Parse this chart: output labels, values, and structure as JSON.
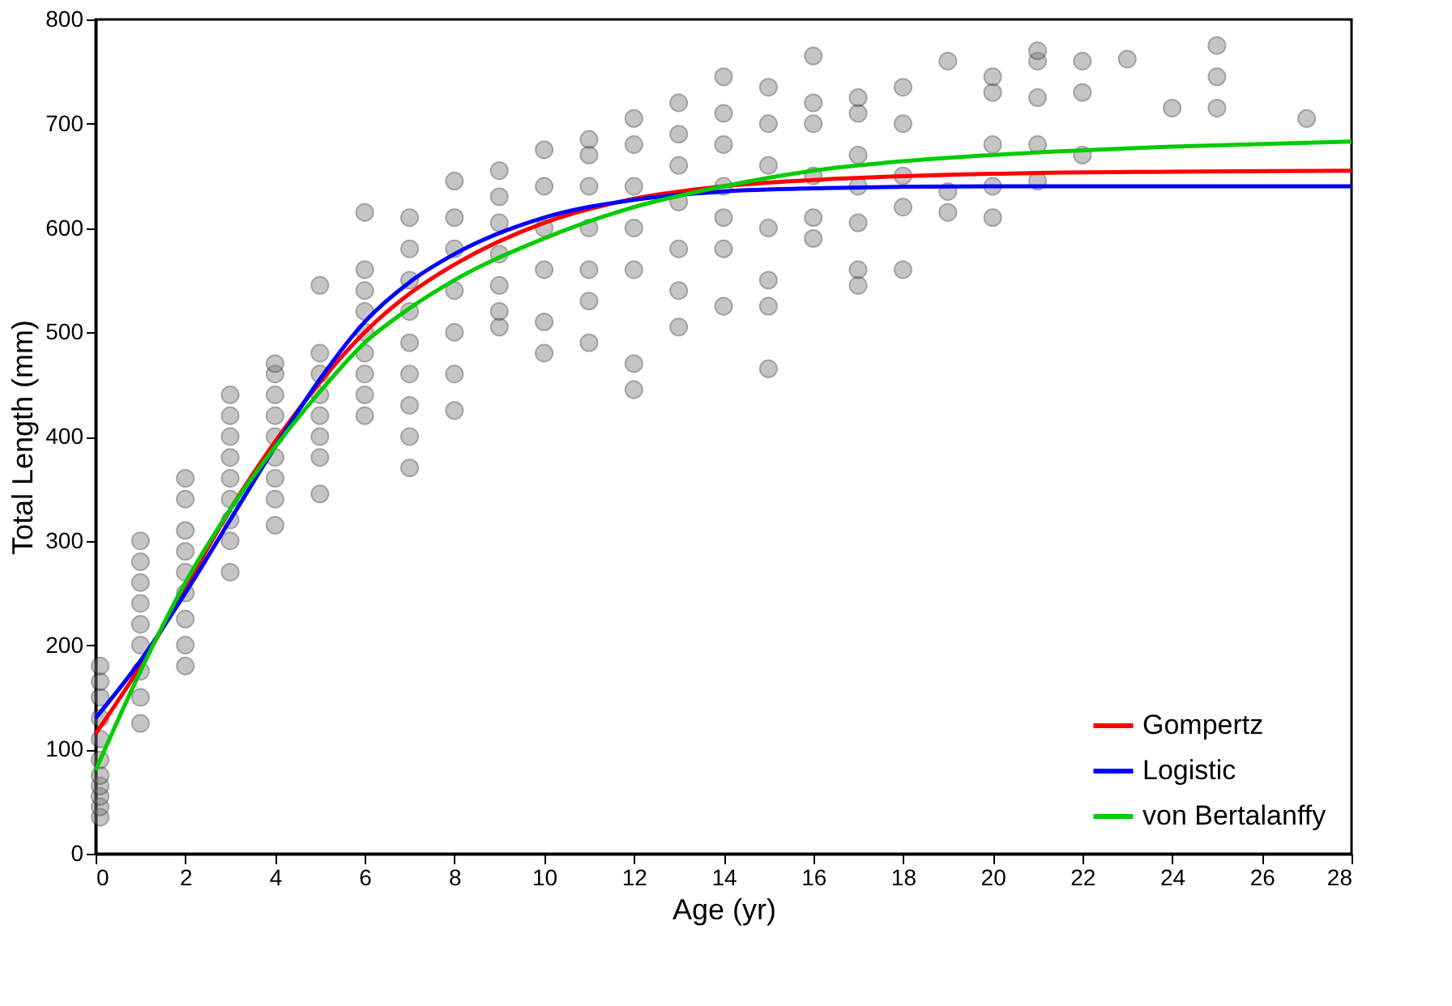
{
  "chart_data": {
    "type": "scatter",
    "xlabel": "Age (yr)",
    "ylabel": "Total Length (mm)",
    "xlim": [
      0,
      28
    ],
    "xticks": [
      0,
      2,
      4,
      6,
      8,
      10,
      12,
      14,
      16,
      18,
      20,
      22,
      24,
      26,
      28
    ],
    "ylim": [
      0,
      800
    ],
    "yticks": [
      0,
      100,
      200,
      300,
      400,
      500,
      600,
      700,
      800
    ],
    "grid": false,
    "legend": "bottom right",
    "series": [
      {
        "marker": "circle",
        "color": "#808080",
        "x": [
          0.1,
          0.1,
          0.1,
          0.1,
          0.1,
          0.1,
          0.1,
          0.1,
          0.1,
          0.1,
          0.1,
          1,
          1,
          1,
          1,
          1,
          1,
          1,
          1,
          1,
          2,
          2,
          2,
          2,
          2,
          2,
          2,
          2,
          2,
          3,
          3,
          3,
          3,
          3,
          3,
          3,
          3,
          3,
          4,
          4,
          4,
          4,
          4,
          4,
          4,
          4,
          4,
          5,
          5,
          5,
          5,
          5,
          5,
          5,
          5,
          6,
          6,
          6,
          6,
          6,
          6,
          6,
          6,
          6,
          7,
          7,
          7,
          7,
          7,
          7,
          7,
          7,
          7,
          8,
          8,
          8,
          8,
          8,
          8,
          8,
          9,
          9,
          9,
          9,
          9,
          9,
          9,
          10,
          10,
          10,
          10,
          10,
          10,
          11,
          11,
          11,
          11,
          11,
          11,
          11,
          12,
          12,
          12,
          12,
          12,
          12,
          12,
          13,
          13,
          13,
          13,
          13,
          13,
          13,
          14,
          14,
          14,
          14,
          14,
          14,
          14,
          15,
          15,
          15,
          15,
          15,
          15,
          15,
          16,
          16,
          16,
          16,
          16,
          16,
          17,
          17,
          17,
          17,
          17,
          17,
          17,
          18,
          18,
          18,
          18,
          18,
          19,
          19,
          19,
          20,
          20,
          20,
          20,
          20,
          21,
          21,
          21,
          21,
          21,
          22,
          22,
          22,
          23,
          24,
          25,
          25,
          25,
          27
        ],
        "values": [
          35,
          45,
          55,
          65,
          75,
          90,
          110,
          130,
          150,
          165,
          180,
          125,
          150,
          175,
          200,
          220,
          240,
          260,
          280,
          300,
          180,
          200,
          225,
          250,
          270,
          290,
          310,
          340,
          360,
          270,
          300,
          320,
          340,
          360,
          380,
          400,
          420,
          440,
          315,
          340,
          360,
          380,
          400,
          420,
          440,
          460,
          470,
          345,
          380,
          400,
          420,
          440,
          460,
          480,
          545,
          420,
          440,
          460,
          480,
          500,
          520,
          540,
          560,
          615,
          370,
          400,
          430,
          460,
          490,
          520,
          550,
          580,
          610,
          425,
          460,
          500,
          540,
          580,
          610,
          645,
          505,
          520,
          545,
          575,
          605,
          630,
          655,
          480,
          510,
          560,
          600,
          640,
          675,
          490,
          530,
          560,
          600,
          640,
          670,
          685,
          445,
          470,
          560,
          600,
          640,
          680,
          705,
          505,
          540,
          580,
          625,
          660,
          690,
          720,
          525,
          580,
          610,
          640,
          680,
          710,
          745,
          465,
          525,
          550,
          600,
          660,
          700,
          735,
          590,
          610,
          650,
          700,
          720,
          765,
          545,
          560,
          605,
          640,
          670,
          710,
          725,
          560,
          620,
          650,
          700,
          735,
          615,
          635,
          760,
          610,
          640,
          680,
          730,
          745,
          645,
          680,
          725,
          760,
          770,
          670,
          730,
          760,
          762,
          715,
          715,
          745,
          775,
          705
        ]
      },
      {
        "type": "line",
        "name": "Gompertz",
        "color": "#ff0000",
        "x": [
          0,
          1,
          2,
          3,
          4,
          5,
          6,
          7,
          8,
          10,
          12,
          14,
          16,
          20,
          24,
          28
        ],
        "values": [
          115,
          180,
          255,
          330,
          395,
          452,
          500,
          537,
          565,
          605,
          628,
          640,
          646,
          652,
          654,
          655
        ]
      },
      {
        "type": "line",
        "name": "Logistic",
        "color": "#0000ff",
        "x": [
          0,
          1,
          2,
          3,
          4,
          5,
          6,
          7,
          8,
          10,
          12,
          14,
          16,
          20,
          24,
          28
        ],
        "values": [
          130,
          185,
          250,
          320,
          390,
          455,
          510,
          548,
          575,
          610,
          627,
          635,
          638,
          640,
          640,
          640
        ]
      },
      {
        "type": "line",
        "name": "von Bertalanffy",
        "color": "#00cc00",
        "x": [
          0,
          1,
          2,
          3,
          4,
          5,
          6,
          7,
          8,
          10,
          12,
          14,
          16,
          18,
          20,
          24,
          28
        ],
        "values": [
          80,
          175,
          260,
          330,
          390,
          443,
          490,
          523,
          550,
          590,
          620,
          640,
          655,
          664,
          670,
          678,
          683
        ]
      }
    ]
  }
}
